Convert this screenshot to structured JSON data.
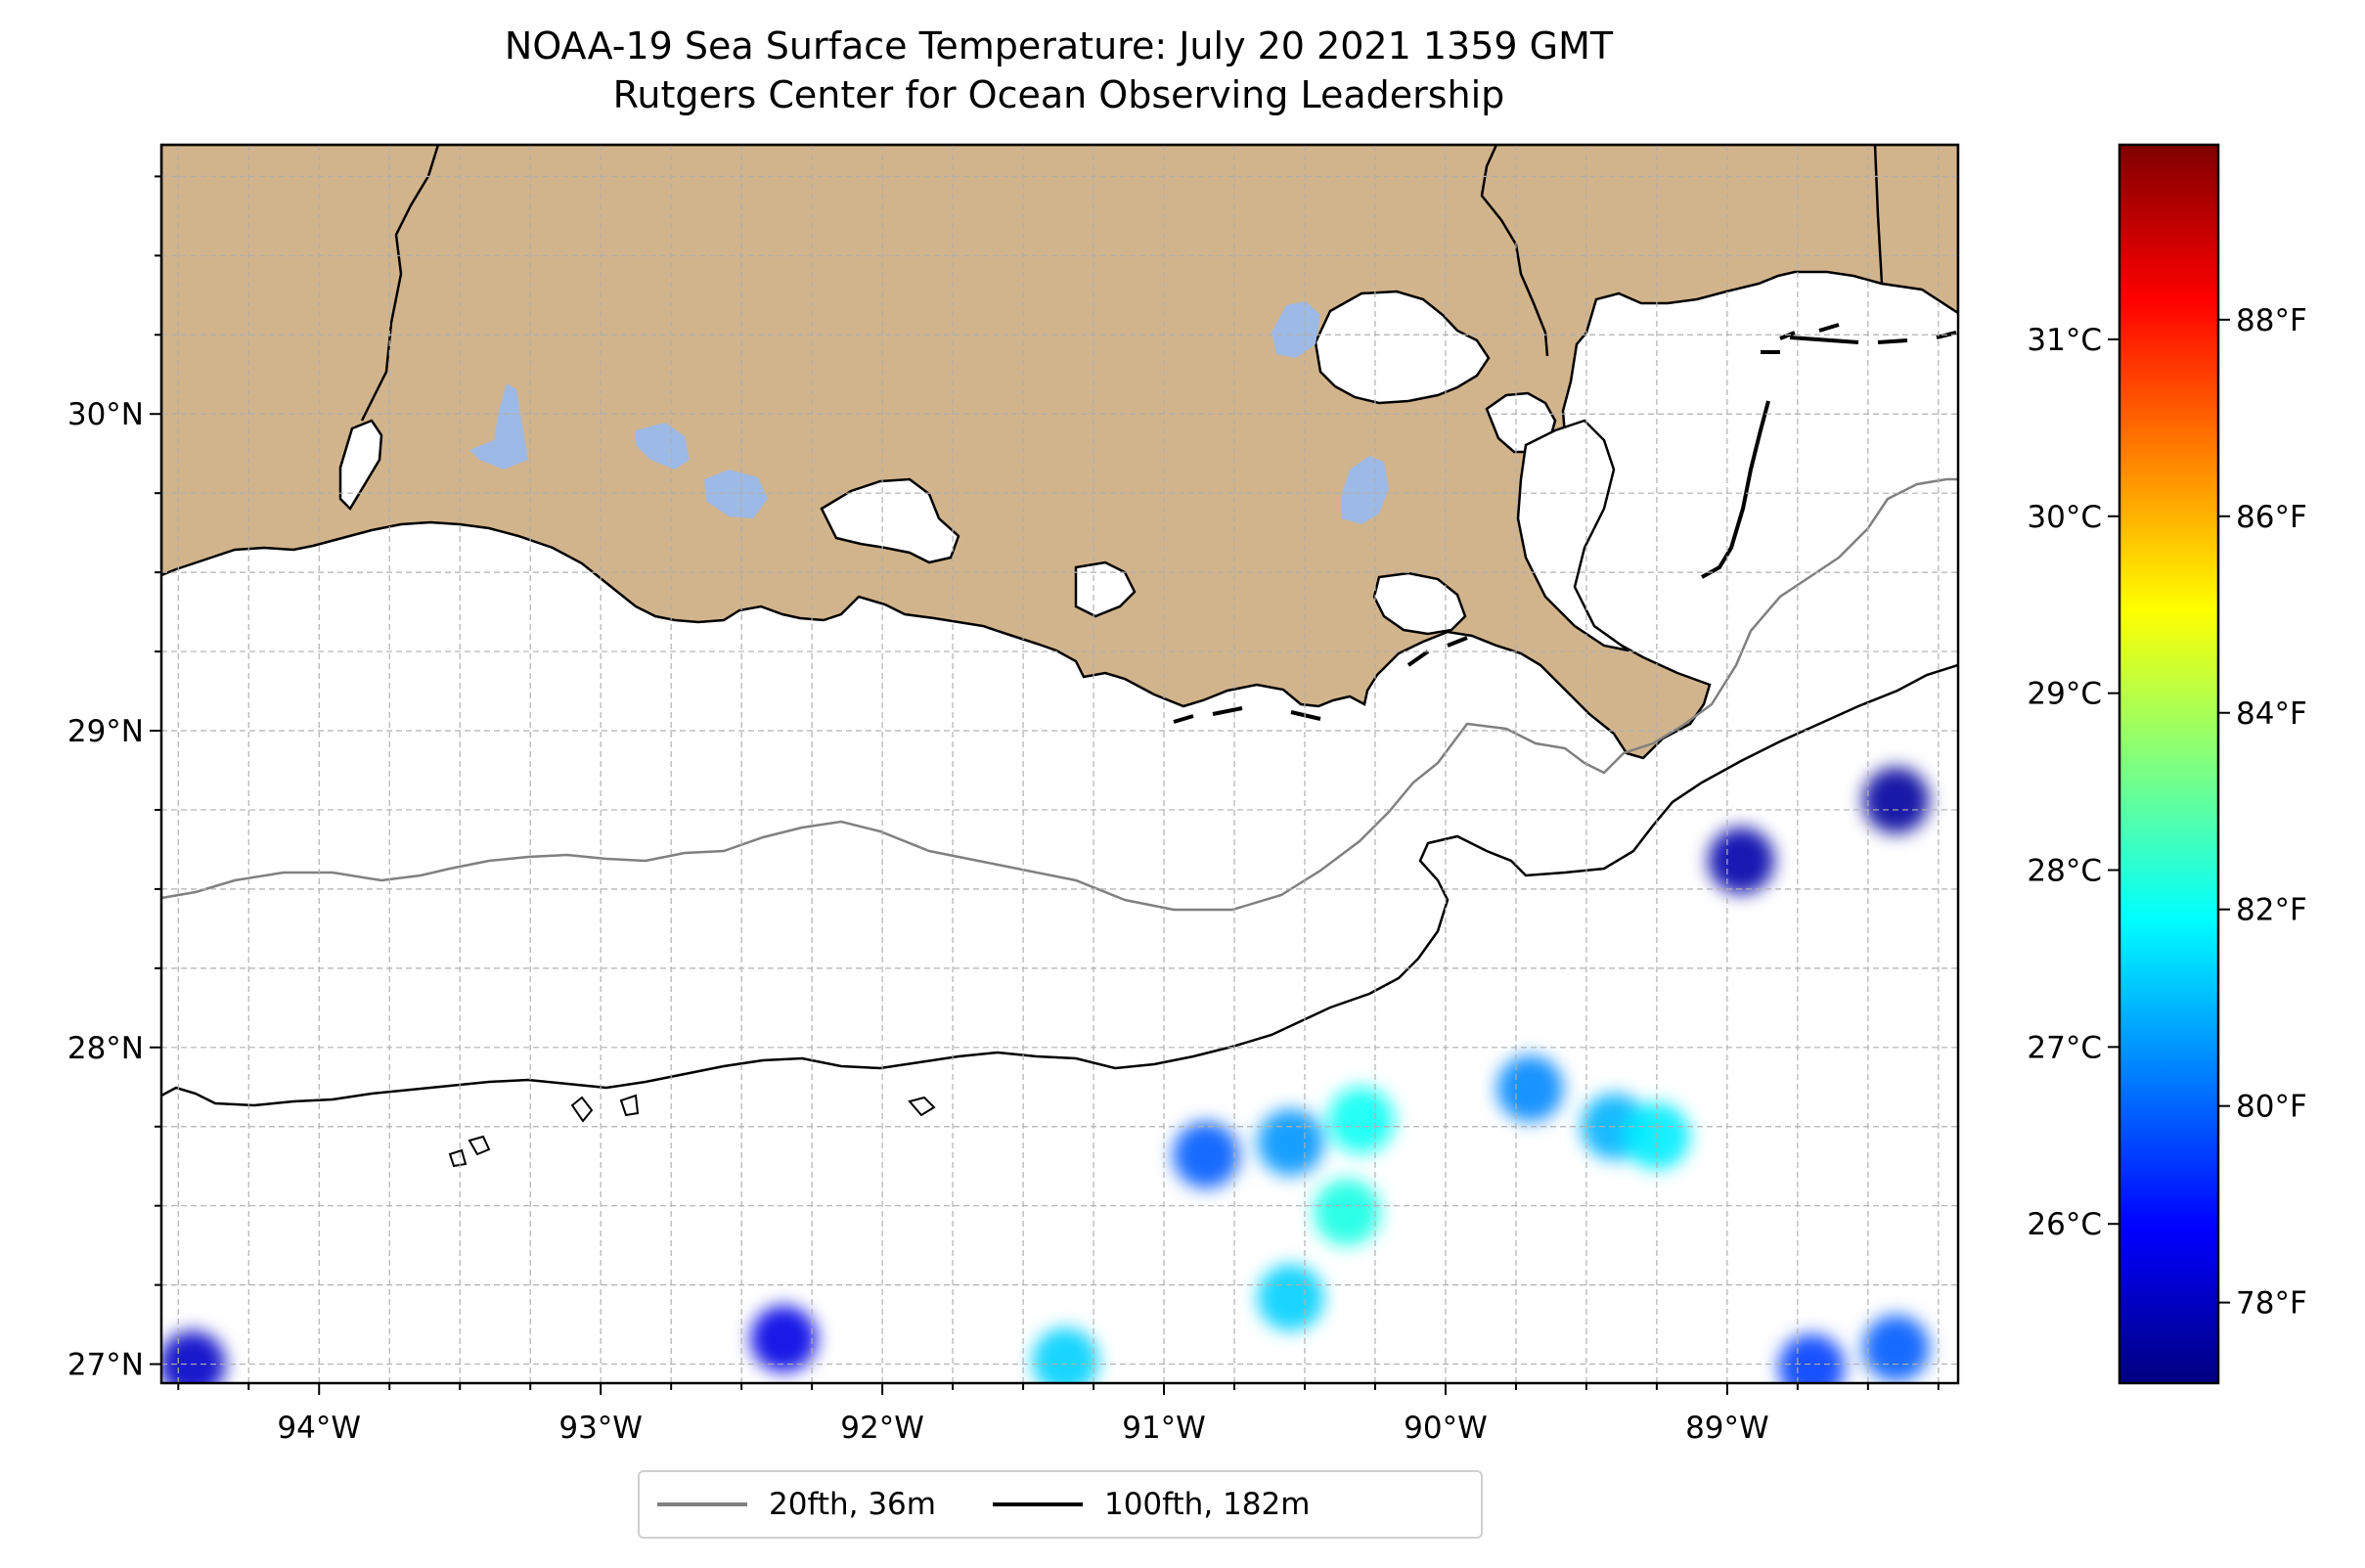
{
  "title": {
    "line1": "NOAA-19 Sea Surface Temperature: July 20 2021 1359 GMT",
    "line2": "Rutgers Center for Ocean Observing Leadership"
  },
  "map": {
    "lon_range": [
      -94.56,
      -88.18
    ],
    "lat_range": [
      26.94,
      30.85
    ],
    "lon_ticks": [
      {
        "value": -94,
        "label": "94°W"
      },
      {
        "value": -93,
        "label": "93°W"
      },
      {
        "value": -92,
        "label": "92°W"
      },
      {
        "value": -91,
        "label": "91°W"
      },
      {
        "value": -90,
        "label": "90°W"
      },
      {
        "value": -89,
        "label": "89°W"
      }
    ],
    "lat_ticks": [
      {
        "value": 30,
        "label": "30°N"
      },
      {
        "value": 29,
        "label": "29°N"
      },
      {
        "value": 28,
        "label": "28°N"
      },
      {
        "value": 27,
        "label": "27°N"
      }
    ],
    "gridlines": "dashed, every 0.25°",
    "colors": {
      "land": "#d2b48c",
      "lakes": "#9db9e5",
      "contour_20fth": "#808080",
      "contour_100fth": "#000000"
    }
  },
  "legend": {
    "placement": "below-center",
    "entries": [
      {
        "label": "20fth, 36m",
        "color": "#808080"
      },
      {
        "label": "100fth, 182m",
        "color": "#000000"
      }
    ]
  },
  "colorbar": {
    "colormap": "jet",
    "range_celsius": [
      25.1,
      32.1
    ],
    "celsius_ticks": [
      "26°C",
      "27°C",
      "28°C",
      "29°C",
      "30°C",
      "31°C"
    ],
    "fahrenheit_ticks": [
      "78°F",
      "80°F",
      "82°F",
      "84°F",
      "86°F",
      "88°F"
    ]
  },
  "sst_patches": [
    {
      "lon": -90.3,
      "lat": 27.77,
      "c": 27.8
    },
    {
      "lon": -90.55,
      "lat": 27.7,
      "c": 27.0
    },
    {
      "lon": -90.85,
      "lat": 27.66,
      "c": 26.6
    },
    {
      "lon": -90.35,
      "lat": 27.48,
      "c": 27.9
    },
    {
      "lon": -89.7,
      "lat": 27.87,
      "c": 26.9
    },
    {
      "lon": -89.4,
      "lat": 27.75,
      "c": 27.2
    },
    {
      "lon": -89.25,
      "lat": 27.72,
      "c": 27.6
    },
    {
      "lon": -88.4,
      "lat": 27.05,
      "c": 26.6
    },
    {
      "lon": -88.7,
      "lat": 26.99,
      "c": 26.4
    },
    {
      "lon": -91.35,
      "lat": 27.01,
      "c": 27.4
    },
    {
      "lon": -92.35,
      "lat": 27.08,
      "c": 25.8
    },
    {
      "lon": -90.55,
      "lat": 27.21,
      "c": 27.4
    },
    {
      "lon": -88.95,
      "lat": 28.59,
      "c": 25.4
    },
    {
      "lon": -88.4,
      "lat": 28.78,
      "c": 25.3
    },
    {
      "lon": -94.45,
      "lat": 27.0,
      "c": 25.6
    }
  ]
}
